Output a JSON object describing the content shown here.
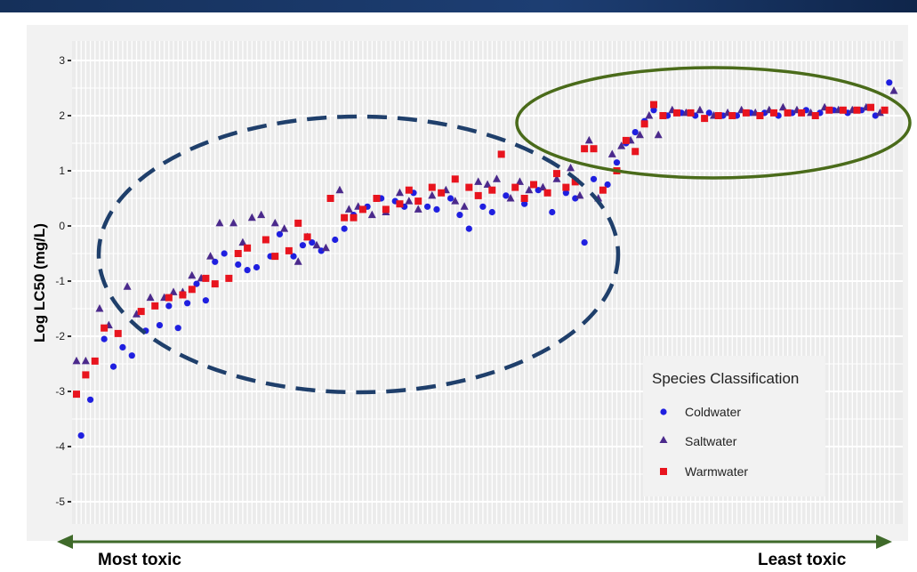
{
  "chart_data": {
    "type": "scatter",
    "ylabel": "Log LC50 (mg/L)",
    "yticks": [
      "3",
      "2",
      "1",
      "0",
      "-1",
      "-2",
      "-3",
      "-4",
      "-5"
    ],
    "ylim": [
      -5.3,
      3.3
    ],
    "xlim": [
      0,
      177
    ],
    "grid": true,
    "legend": {
      "title": "Species Classification",
      "position": "bottom-right",
      "entries": [
        "Coldwater",
        "Saltwater",
        "Warmwater"
      ]
    },
    "series": [
      {
        "name": "Coldwater",
        "marker": "circle",
        "color": "#1f1fe0",
        "points": [
          [
            1,
            -3.8
          ],
          [
            3,
            -3.15
          ],
          [
            6,
            -2.05
          ],
          [
            8,
            -2.55
          ],
          [
            10,
            -2.2
          ],
          [
            12,
            -2.35
          ],
          [
            15,
            -1.9
          ],
          [
            18,
            -1.8
          ],
          [
            20,
            -1.45
          ],
          [
            22,
            -1.85
          ],
          [
            24,
            -1.4
          ],
          [
            26,
            -1.05
          ],
          [
            28,
            -1.35
          ],
          [
            30,
            -0.65
          ],
          [
            32,
            -0.5
          ],
          [
            35,
            -0.7
          ],
          [
            37,
            -0.8
          ],
          [
            39,
            -0.75
          ],
          [
            42,
            -0.55
          ],
          [
            44,
            -0.15
          ],
          [
            47,
            -0.55
          ],
          [
            49,
            -0.35
          ],
          [
            51,
            -0.3
          ],
          [
            53,
            -0.45
          ],
          [
            56,
            -0.25
          ],
          [
            58,
            -0.05
          ],
          [
            60,
            0.2
          ],
          [
            63,
            0.35
          ],
          [
            66,
            0.5
          ],
          [
            69,
            0.45
          ],
          [
            71,
            0.35
          ],
          [
            73,
            0.6
          ],
          [
            76,
            0.35
          ],
          [
            78,
            0.3
          ],
          [
            81,
            0.5
          ],
          [
            83,
            0.2
          ],
          [
            85,
            -0.05
          ],
          [
            88,
            0.35
          ],
          [
            90,
            0.25
          ],
          [
            93,
            0.55
          ],
          [
            95,
            0.7
          ],
          [
            97,
            0.4
          ],
          [
            100,
            0.65
          ],
          [
            103,
            0.25
          ],
          [
            106,
            0.6
          ],
          [
            108,
            0.5
          ],
          [
            110,
            -0.3
          ],
          [
            112,
            0.85
          ],
          [
            115,
            0.75
          ],
          [
            117,
            1.15
          ],
          [
            119,
            1.5
          ],
          [
            121,
            1.7
          ],
          [
            123,
            1.9
          ],
          [
            125,
            2.1
          ],
          [
            128,
            2.0
          ],
          [
            131,
            2.05
          ],
          [
            134,
            2.0
          ],
          [
            137,
            2.05
          ],
          [
            140,
            2.0
          ],
          [
            143,
            2.0
          ],
          [
            146,
            2.05
          ],
          [
            149,
            2.05
          ],
          [
            152,
            2.0
          ],
          [
            155,
            2.05
          ],
          [
            158,
            2.1
          ],
          [
            161,
            2.05
          ],
          [
            164,
            2.1
          ],
          [
            167,
            2.05
          ],
          [
            170,
            2.1
          ],
          [
            173,
            2.0
          ],
          [
            176,
            2.6
          ]
        ]
      },
      {
        "name": "Saltwater",
        "marker": "triangle",
        "color": "#4b2a8c",
        "points": [
          [
            0,
            -2.45
          ],
          [
            2,
            -2.45
          ],
          [
            5,
            -1.5
          ],
          [
            7,
            -1.8
          ],
          [
            11,
            -1.1
          ],
          [
            13,
            -1.6
          ],
          [
            16,
            -1.3
          ],
          [
            19,
            -1.3
          ],
          [
            21,
            -1.2
          ],
          [
            23,
            -1.2
          ],
          [
            25,
            -0.9
          ],
          [
            27,
            -0.95
          ],
          [
            29,
            -0.55
          ],
          [
            31,
            0.05
          ],
          [
            34,
            0.05
          ],
          [
            36,
            -0.3
          ],
          [
            38,
            0.15
          ],
          [
            40,
            0.2
          ],
          [
            43,
            0.05
          ],
          [
            45,
            -0.05
          ],
          [
            48,
            -0.65
          ],
          [
            50,
            -0.2
          ],
          [
            52,
            -0.35
          ],
          [
            54,
            -0.4
          ],
          [
            57,
            0.65
          ],
          [
            59,
            0.3
          ],
          [
            61,
            0.35
          ],
          [
            64,
            0.2
          ],
          [
            67,
            0.25
          ],
          [
            70,
            0.6
          ],
          [
            72,
            0.45
          ],
          [
            74,
            0.3
          ],
          [
            77,
            0.55
          ],
          [
            80,
            0.65
          ],
          [
            82,
            0.45
          ],
          [
            84,
            0.35
          ],
          [
            87,
            0.8
          ],
          [
            89,
            0.75
          ],
          [
            91,
            0.85
          ],
          [
            94,
            0.5
          ],
          [
            96,
            0.8
          ],
          [
            98,
            0.65
          ],
          [
            101,
            0.7
          ],
          [
            104,
            0.85
          ],
          [
            107,
            1.05
          ],
          [
            109,
            0.55
          ],
          [
            111,
            1.55
          ],
          [
            113,
            0.5
          ],
          [
            116,
            1.3
          ],
          [
            118,
            1.45
          ],
          [
            120,
            1.55
          ],
          [
            122,
            1.65
          ],
          [
            124,
            2.0
          ],
          [
            126,
            1.65
          ],
          [
            129,
            2.1
          ],
          [
            132,
            2.05
          ],
          [
            135,
            2.1
          ],
          [
            138,
            2.0
          ],
          [
            141,
            2.05
          ],
          [
            144,
            2.1
          ],
          [
            147,
            2.05
          ],
          [
            150,
            2.1
          ],
          [
            153,
            2.15
          ],
          [
            156,
            2.1
          ],
          [
            159,
            2.05
          ],
          [
            162,
            2.15
          ],
          [
            165,
            2.1
          ],
          [
            168,
            2.1
          ],
          [
            171,
            2.15
          ],
          [
            174,
            2.05
          ],
          [
            177,
            2.45
          ]
        ]
      },
      {
        "name": "Warmwater",
        "marker": "square",
        "color": "#e8141e",
        "points": [
          [
            0,
            -3.05
          ],
          [
            2,
            -2.7
          ],
          [
            4,
            -2.45
          ],
          [
            6,
            -1.85
          ],
          [
            9,
            -1.95
          ],
          [
            14,
            -1.55
          ],
          [
            17,
            -1.45
          ],
          [
            20,
            -1.3
          ],
          [
            23,
            -1.25
          ],
          [
            25,
            -1.15
          ],
          [
            28,
            -0.95
          ],
          [
            30,
            -1.05
          ],
          [
            33,
            -0.95
          ],
          [
            35,
            -0.5
          ],
          [
            37,
            -0.4
          ],
          [
            41,
            -0.25
          ],
          [
            43,
            -0.55
          ],
          [
            46,
            -0.45
          ],
          [
            48,
            0.05
          ],
          [
            50,
            -0.2
          ],
          [
            55,
            0.5
          ],
          [
            58,
            0.15
          ],
          [
            60,
            0.15
          ],
          [
            62,
            0.3
          ],
          [
            65,
            0.5
          ],
          [
            67,
            0.3
          ],
          [
            70,
            0.4
          ],
          [
            72,
            0.65
          ],
          [
            74,
            0.45
          ],
          [
            77,
            0.7
          ],
          [
            79,
            0.6
          ],
          [
            82,
            0.85
          ],
          [
            85,
            0.7
          ],
          [
            87,
            0.55
          ],
          [
            90,
            0.65
          ],
          [
            92,
            1.3
          ],
          [
            95,
            0.7
          ],
          [
            97,
            0.5
          ],
          [
            99,
            0.75
          ],
          [
            102,
            0.6
          ],
          [
            104,
            0.95
          ],
          [
            106,
            0.7
          ],
          [
            108,
            0.8
          ],
          [
            110,
            1.4
          ],
          [
            112,
            1.4
          ],
          [
            114,
            0.65
          ],
          [
            117,
            1.0
          ],
          [
            119,
            1.55
          ],
          [
            121,
            1.35
          ],
          [
            123,
            1.85
          ],
          [
            125,
            2.2
          ],
          [
            127,
            2.0
          ],
          [
            130,
            2.05
          ],
          [
            133,
            2.05
          ],
          [
            136,
            1.95
          ],
          [
            139,
            2.0
          ],
          [
            142,
            2.0
          ],
          [
            145,
            2.05
          ],
          [
            148,
            2.0
          ],
          [
            151,
            2.05
          ],
          [
            154,
            2.05
          ],
          [
            157,
            2.05
          ],
          [
            160,
            2.0
          ],
          [
            163,
            2.1
          ],
          [
            166,
            2.1
          ],
          [
            169,
            2.1
          ],
          [
            172,
            2.15
          ],
          [
            175,
            2.1
          ]
        ]
      }
    ],
    "annotations": {
      "dashed_ellipse_color": "#1f3f6b",
      "solid_ellipse_color": "#4a6b1a",
      "arrow_color": "#3f6a2a"
    }
  },
  "footer": {
    "left_label": "Most toxic",
    "right_label": "Least toxic"
  }
}
